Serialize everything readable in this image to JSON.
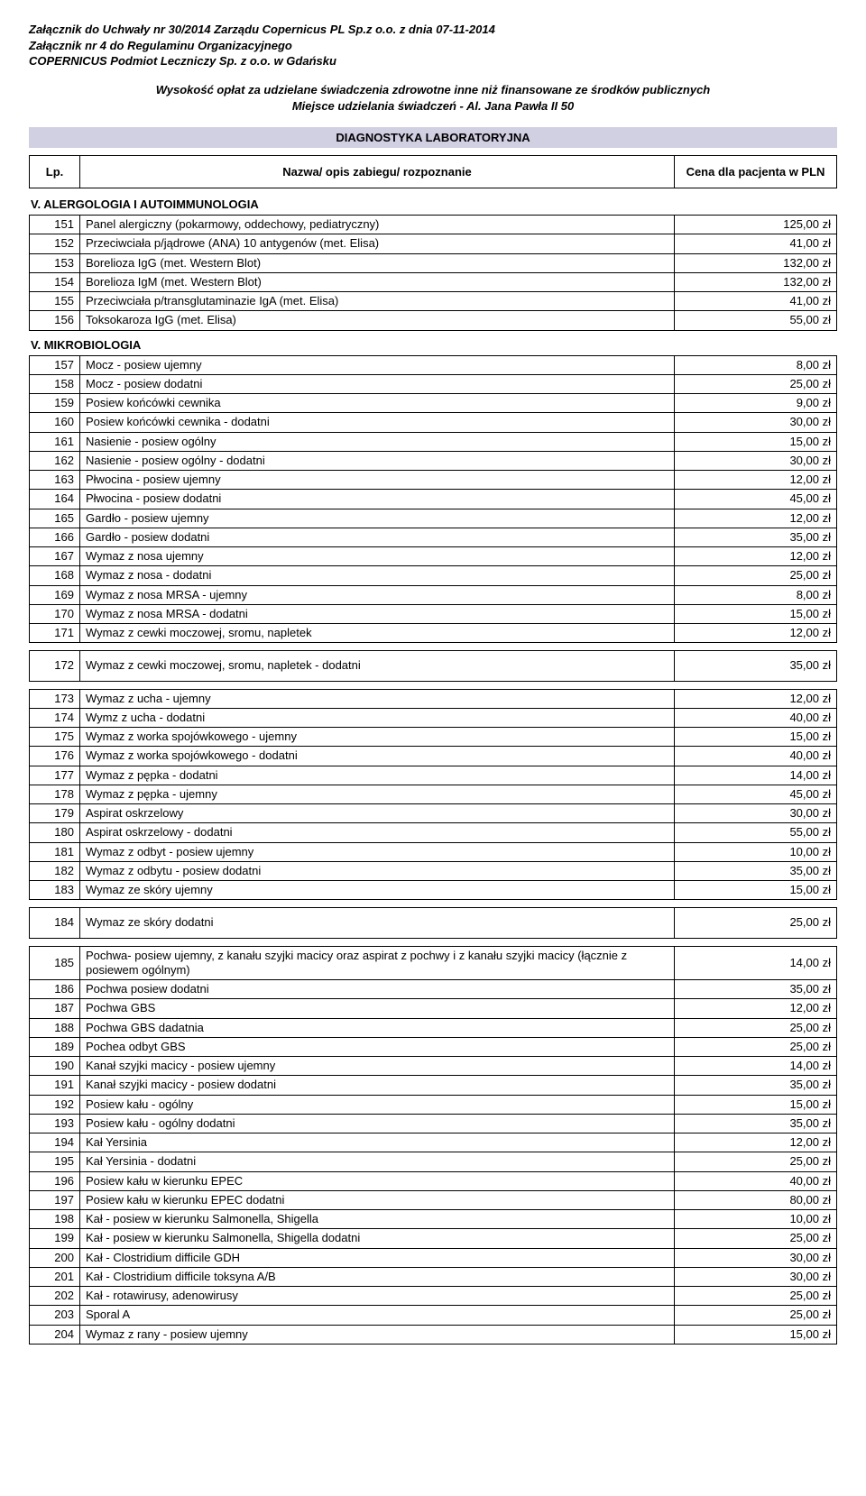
{
  "header": {
    "line1": "Załącznik do Uchwały nr 30/2014 Zarządu Copernicus PL Sp.z o.o. z dnia 07-11-2014",
    "line2": "Załącznik nr 4 do Regulaminu Organizacyjnego",
    "line3": "COPERNICUS  Podmiot Leczniczy Sp. z o.o. w Gdańsku"
  },
  "title": {
    "line1": "Wysokość opłat za udzielane świadczenia zdrowotne inne niż finansowane ze środków publicznych",
    "line2": "Miejsce udzielania świadczeń - Al. Jana Pawła II 50"
  },
  "sectionBanner": "DIAGNOSTYKA LABORATORYJNA",
  "columns": {
    "lp": "Lp.",
    "name": "Nazwa/ opis zabiegu/ rozpoznanie",
    "price": "Cena dla pacjenta w PLN"
  },
  "groups": [
    {
      "heading": "V. ALERGOLOGIA I AUTOIMMUNOLOGIA",
      "rows": [
        {
          "n": "151",
          "name": "Panel alergiczny (pokarmowy, oddechowy, pediatryczny)",
          "price": "125,00 zł"
        },
        {
          "n": "152",
          "name": "Przeciwciała p/jądrowe (ANA) 10 antygenów (met. Elisa)",
          "price": "41,00 zł"
        },
        {
          "n": "153",
          "name": "Borelioza IgG (met. Western Blot)",
          "price": "132,00 zł"
        },
        {
          "n": "154",
          "name": "Borelioza IgM (met. Western Blot)",
          "price": "132,00 zł"
        },
        {
          "n": "155",
          "name": "Przeciwciała p/transglutaminazie IgA (met. Elisa)",
          "price": "41,00 zł"
        },
        {
          "n": "156",
          "name": "Toksokaroza IgG (met. Elisa)",
          "price": "55,00 zł"
        }
      ]
    },
    {
      "heading": "V. MIKROBIOLOGIA",
      "rows": [
        {
          "n": "157",
          "name": "Mocz - posiew ujemny",
          "price": "8,00 zł"
        },
        {
          "n": "158",
          "name": "Mocz - posiew dodatni",
          "price": "25,00 zł"
        },
        {
          "n": "159",
          "name": "Posiew końcówki cewnika",
          "price": "9,00 zł"
        },
        {
          "n": "160",
          "name": "Posiew końcówki cewnika - dodatni",
          "price": "30,00 zł"
        },
        {
          "n": "161",
          "name": "Nasienie - posiew ogólny",
          "price": "15,00 zł"
        },
        {
          "n": "162",
          "name": "Nasienie - posiew ogólny  - dodatni",
          "price": "30,00 zł"
        },
        {
          "n": "163",
          "name": "Płwocina - posiew ujemny",
          "price": "12,00 zł"
        },
        {
          "n": "164",
          "name": "Płwocina - posiew dodatni",
          "price": "45,00 zł"
        },
        {
          "n": "165",
          "name": "Gardło - posiew ujemny",
          "price": "12,00 zł"
        },
        {
          "n": "166",
          "name": "Gardło - posiew dodatni",
          "price": "35,00 zł"
        },
        {
          "n": "167",
          "name": "Wymaz z nosa ujemny",
          "price": "12,00 zł"
        },
        {
          "n": "168",
          "name": "Wymaz z nosa  - dodatni",
          "price": "25,00 zł"
        },
        {
          "n": "169",
          "name": "Wymaz z nosa MRSA - ujemny",
          "price": "8,00 zł"
        },
        {
          "n": "170",
          "name": "Wymaz z nosa MRSA  - dodatni",
          "price": "15,00 zł"
        },
        {
          "n": "171",
          "name": "Wymaz z cewki moczowej, sromu, napletek",
          "price": "12,00 zł"
        }
      ]
    },
    {
      "heading": "",
      "rows": [
        {
          "n": "172",
          "name": "Wymaz z cewki moczowej, sromu, napletek - dodatni",
          "price": "35,00 zł",
          "tall": true
        }
      ]
    },
    {
      "heading": "",
      "rows": [
        {
          "n": "173",
          "name": "Wymaz z ucha - ujemny",
          "price": "12,00 zł"
        },
        {
          "n": "174",
          "name": "Wymz z ucha - dodatni",
          "price": "40,00 zł"
        },
        {
          "n": "175",
          "name": "Wymaz z worka spojówkowego - ujemny",
          "price": "15,00 zł"
        },
        {
          "n": "176",
          "name": "Wymaz z worka spojówkowego  - dodatni",
          "price": "40,00 zł"
        },
        {
          "n": "177",
          "name": "Wymaz z pępka - dodatni",
          "price": "14,00 zł"
        },
        {
          "n": "178",
          "name": "Wymaz z pępka - ujemny",
          "price": "45,00 zł"
        },
        {
          "n": "179",
          "name": "Aspirat oskrzelowy",
          "price": "30,00 zł"
        },
        {
          "n": "180",
          "name": "Aspirat oskrzelowy - dodatni",
          "price": "55,00 zł"
        },
        {
          "n": "181",
          "name": "Wymaz z odbyt - posiew ujemny",
          "price": "10,00 zł"
        },
        {
          "n": "182",
          "name": "Wymaz z odbytu - posiew dodatni",
          "price": "35,00 zł"
        },
        {
          "n": "183",
          "name": "Wymaz ze skóry ujemny",
          "price": "15,00 zł"
        }
      ]
    },
    {
      "heading": "",
      "rows": [
        {
          "n": "184",
          "name": "Wymaz ze skóry dodatni",
          "price": "25,00 zł",
          "tall": true
        }
      ]
    },
    {
      "heading": "",
      "rows": [
        {
          "n": "185",
          "name": "Pochwa- posiew ujemny, z kanału szyjki macicy oraz aspirat z pochwy i z kanału szyjki macicy (łącznie z posiewem ogólnym)",
          "price": "14,00 zł"
        },
        {
          "n": "186",
          "name": "Pochwa posiew dodatni",
          "price": "35,00 zł"
        },
        {
          "n": "187",
          "name": "Pochwa GBS",
          "price": "12,00 zł"
        },
        {
          "n": "188",
          "name": "Pochwa GBS dadatnia",
          "price": "25,00 zł"
        },
        {
          "n": "189",
          "name": "Pochea odbyt GBS",
          "price": "25,00 zł"
        },
        {
          "n": "190",
          "name": "Kanał szyjki macicy - posiew ujemny",
          "price": "14,00 zł"
        },
        {
          "n": "191",
          "name": "Kanał szyjki macicy - posiew dodatni",
          "price": "35,00 zł"
        },
        {
          "n": "192",
          "name": "Posiew kału - ogólny",
          "price": "15,00 zł"
        },
        {
          "n": "193",
          "name": "Posiew kału - ogólny dodatni",
          "price": "35,00 zł"
        },
        {
          "n": "194",
          "name": "Kał Yersinia",
          "price": "12,00 zł"
        },
        {
          "n": "195",
          "name": "Kał Yersinia - dodatni",
          "price": "25,00 zł"
        },
        {
          "n": "196",
          "name": "Posiew kału w kierunku EPEC",
          "price": "40,00 zł"
        },
        {
          "n": "197",
          "name": "Posiew kału w kierunku EPEC dodatni",
          "price": "80,00 zł"
        },
        {
          "n": "198",
          "name": "Kał - posiew w kierunku Salmonella, Shigella",
          "price": "10,00 zł"
        },
        {
          "n": "199",
          "name": "Kał - posiew w kierunku Salmonella, Shigella dodatni",
          "price": "25,00 zł"
        },
        {
          "n": "200",
          "name": "Kał - Clostridium difficile GDH",
          "price": "30,00 zł"
        },
        {
          "n": "201",
          "name": "Kał - Clostridium difficile toksyna A/B",
          "price": "30,00 zł"
        },
        {
          "n": "202",
          "name": "Kał - rotawirusy, adenowirusy",
          "price": "25,00 zł"
        },
        {
          "n": "203",
          "name": "Sporal A",
          "price": "25,00 zł"
        },
        {
          "n": "204",
          "name": "Wymaz z rany - posiew ujemny",
          "price": "15,00 zł"
        }
      ]
    }
  ],
  "style": {
    "bannerBg": "#d1cfe2",
    "font": "Arial",
    "fontSize": 13
  }
}
